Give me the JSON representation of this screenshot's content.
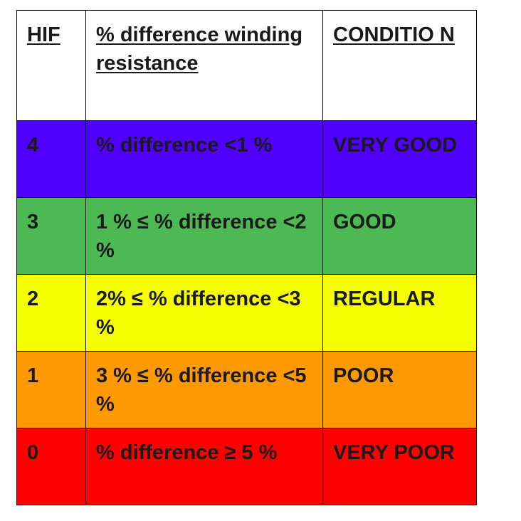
{
  "table": {
    "headers": [
      "HIF",
      "% difference winding resistance",
      "CONDITIO N"
    ],
    "rows": [
      {
        "hif": "4",
        "difference": "% difference <1 %",
        "condition": "VERY GOOD",
        "color": "#5000ff"
      },
      {
        "hif": "3",
        "difference": "1 % ≤ % difference <2 %",
        "condition": "GOOD",
        "color": "#4cb954"
      },
      {
        "hif": "2",
        "difference": "2% ≤ % difference <3 %",
        "condition": "REGULAR",
        "color": "#f5ff00"
      },
      {
        "hif": "1",
        "difference": "3 % ≤ % difference <5 %",
        "condition": "POOR",
        "color": "#ff9900"
      },
      {
        "hif": "0",
        "difference": "% difference ≥ 5 %",
        "condition": "VERY POOR",
        "color": "#ff0000"
      }
    ]
  }
}
